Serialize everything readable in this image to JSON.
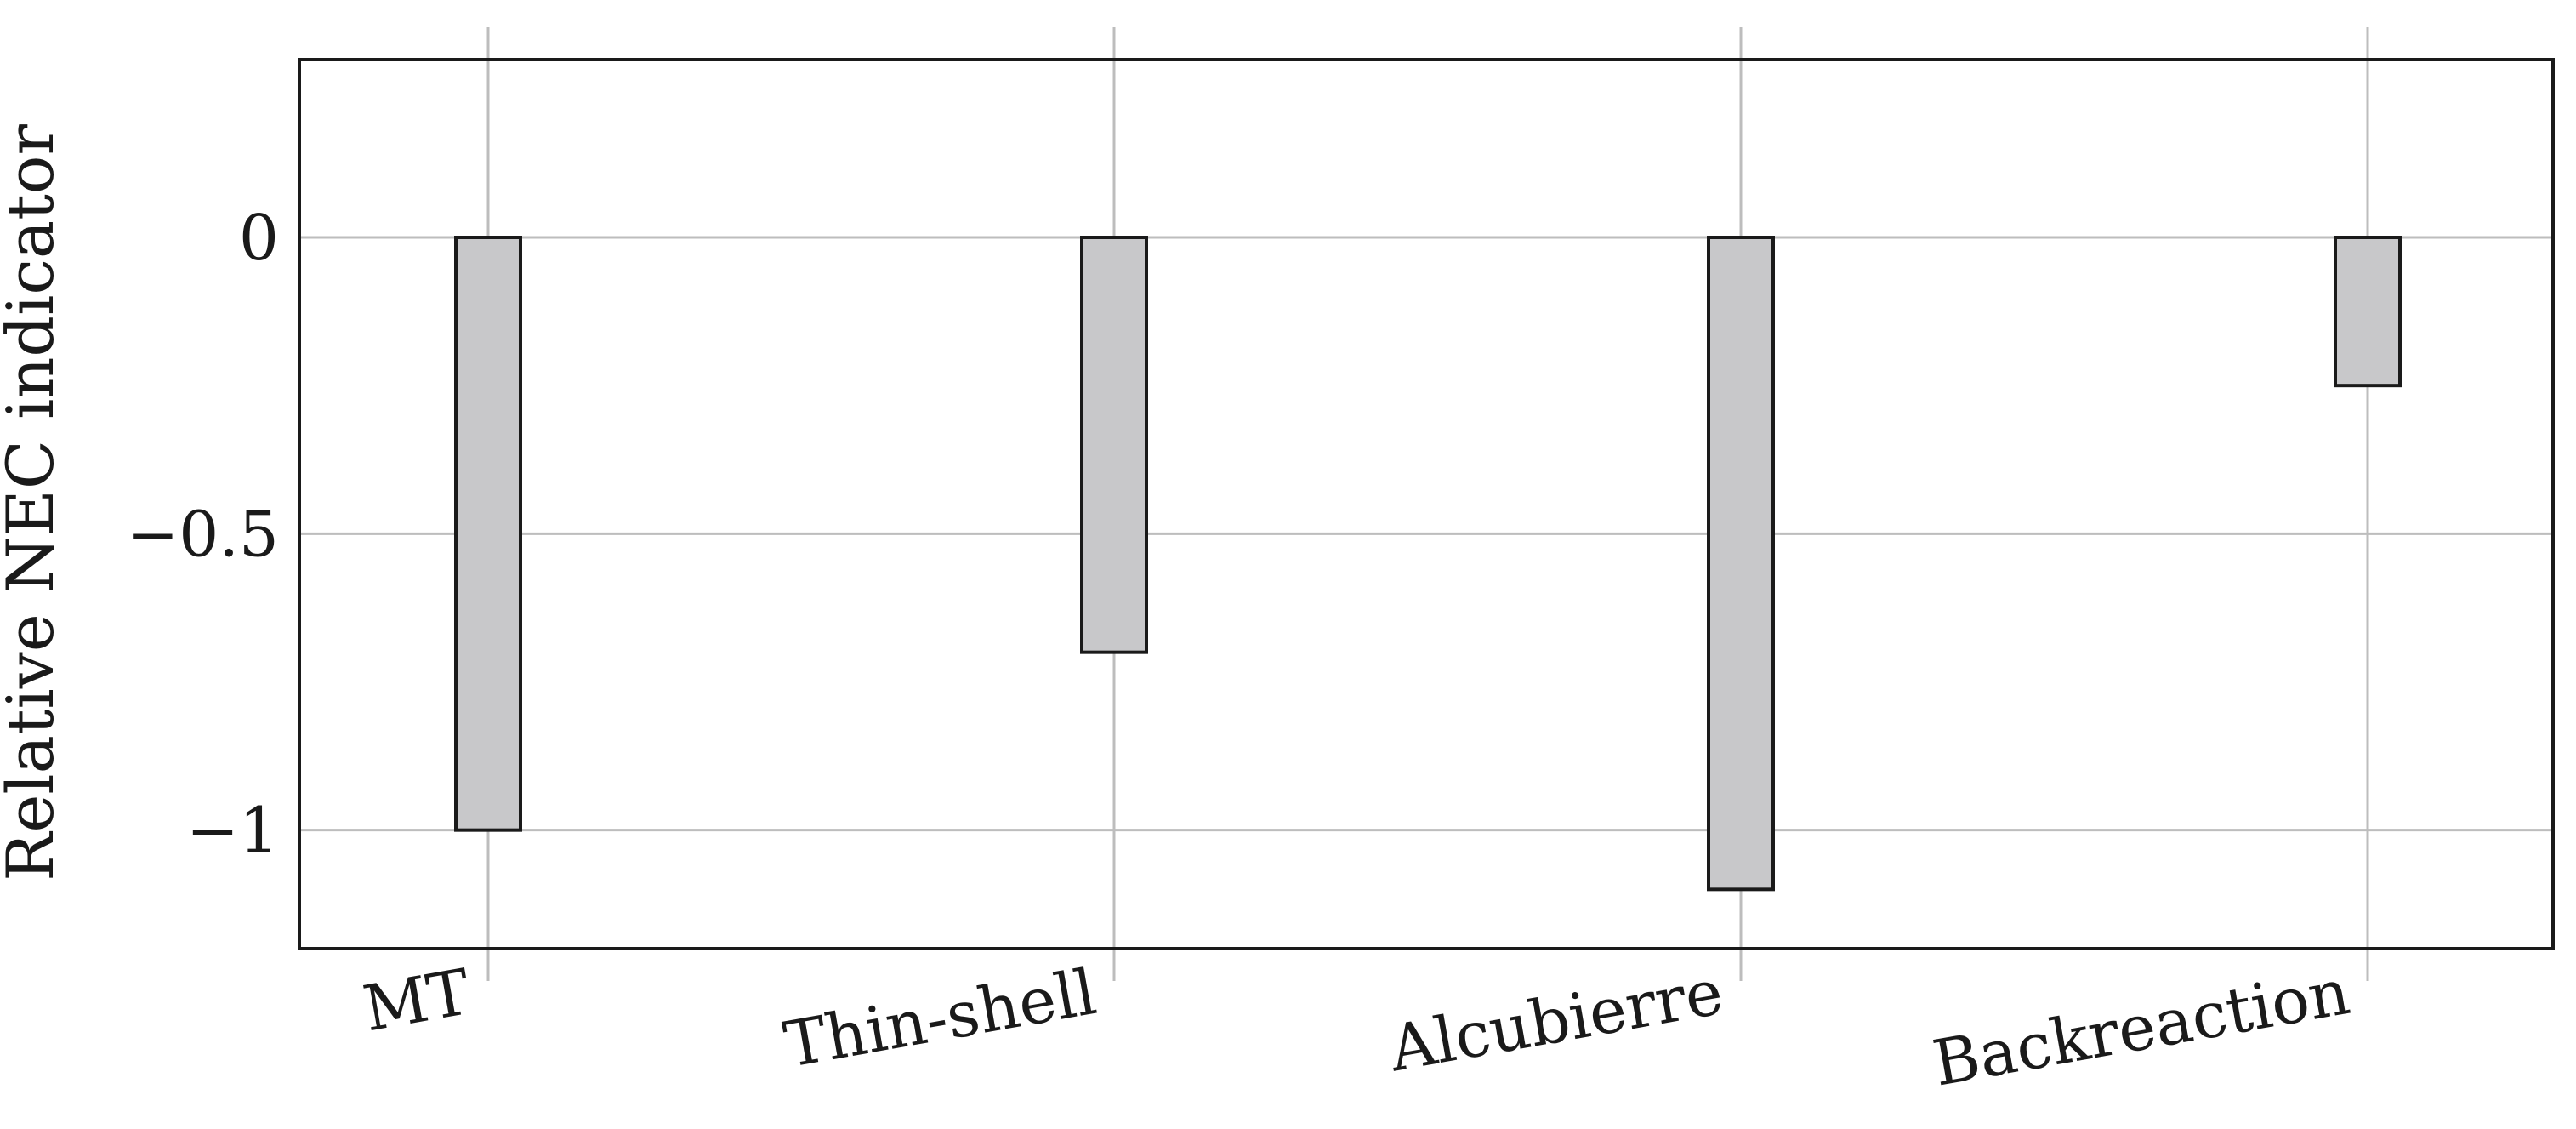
{
  "chart_data": {
    "type": "bar",
    "categories": [
      "MT",
      "Thin-shell",
      "Alcubierre",
      "Backreaction"
    ],
    "values": [
      -1.0,
      -0.7,
      -1.1,
      -0.25
    ],
    "title": "",
    "xlabel": "",
    "ylabel": "Relative NEC indicator",
    "ylim": [
      -1.2,
      0.3
    ],
    "yticks": [
      0,
      -0.5,
      -1
    ],
    "ytick_labels": [
      "0",
      "−0.5",
      "−1"
    ],
    "grid": true,
    "colors": {
      "bar_fill": "#c8c8ca",
      "bar_stroke": "#1a1a1a",
      "grid": "#bdbdbd",
      "axis": "#1a1a1a"
    }
  }
}
